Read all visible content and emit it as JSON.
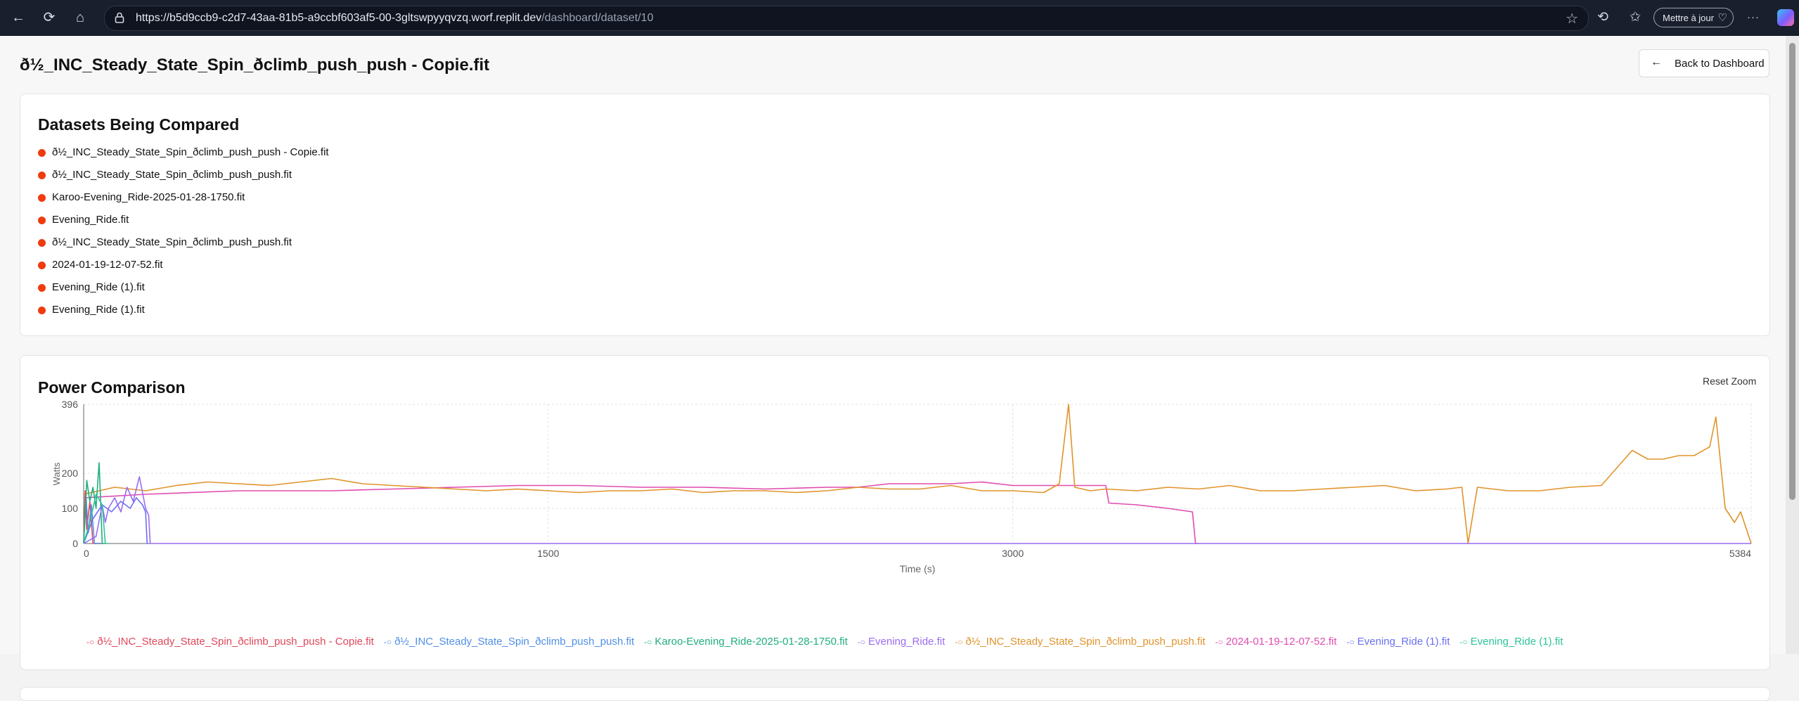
{
  "browser": {
    "url_host": "https://b5d9ccb9-c2d7-43aa-81b5-a9ccbf603af5-00-3gltswpyyqvzq.worf.replit.dev",
    "url_path": "/dashboard/dataset/10",
    "immersive_label": "Mettre à jour"
  },
  "page": {
    "title": "ð\u001f\u001f½_INC_Steady_State_Spin_ð\u001f\u001f\u001fclimb_push_push - Copie.fit",
    "back_label": "Back to Dashboard"
  },
  "datasets_card": {
    "title": "Datasets Being Compared",
    "items": [
      "ð\u001f\u001f½_INC_Steady_State_Spin_ð\u001f\u001f\u001fclimb_push_push - Copie.fit",
      "ð\u001f\u001f½_INC_Steady_State_Spin_ð\u001f\u001f\u001fclimb_push_push.fit",
      "Karoo-Evening_Ride-2025-01-28-1750.fit",
      "Evening_Ride.fit",
      "ð\u001f\u001f½_INC_Steady_State_Spin_ð\u001f\u001f\u001fclimb_push_push.fit",
      "2024-01-19-12-07-52.fit",
      "Evening_Ride (1).fit",
      "Evening_Ride (1).fit"
    ],
    "dot_color": "#ef3b0e"
  },
  "power_card": {
    "title": "Power Comparison",
    "reset_zoom": "Reset Zoom"
  },
  "chart_data": {
    "type": "line",
    "xlabel": "Time (s)",
    "ylabel": "Watts",
    "xlim": [
      0,
      5384
    ],
    "ylim": [
      0,
      396
    ],
    "xticks": [
      0,
      1500,
      3000,
      5384
    ],
    "yticks": [
      0,
      100,
      200,
      396
    ],
    "grid": true,
    "legend_position": "bottom",
    "series": [
      {
        "name": "ð\u001f\u001f½_INC_Steady_State_Spin_ð\u001f\u001f\u001fclimb_push_push - Copie.fit",
        "color": "#e0475b",
        "x": [
          0,
          5,
          10,
          20,
          30,
          40,
          50,
          60
        ],
        "y": [
          0,
          150,
          40,
          120,
          0,
          0,
          0,
          0
        ]
      },
      {
        "name": "ð\u001f\u001f½_INC_Steady_State_Spin_ð\u001f\u001f\u001fclimb_push_push.fit",
        "color": "#4f8fe8",
        "x": [
          0,
          8,
          15,
          25,
          35,
          45,
          55
        ],
        "y": [
          0,
          130,
          30,
          110,
          0,
          0,
          0
        ]
      },
      {
        "name": "Karoo-Evening_Ride-2025-01-28-1750.fit",
        "color": "#1fae7e",
        "x": [
          0,
          10,
          20,
          30,
          40,
          50,
          60,
          70
        ],
        "y": [
          0,
          180,
          120,
          160,
          100,
          230,
          0,
          0
        ]
      },
      {
        "name": "Evening_Ride.fit",
        "color": "#9a6cf2",
        "x": [
          0,
          40,
          60,
          70,
          80,
          100,
          120,
          140,
          160,
          180,
          200,
          210,
          215,
          220,
          5384
        ],
        "y": [
          0,
          20,
          110,
          60,
          100,
          130,
          90,
          160,
          120,
          190,
          100,
          80,
          0,
          0,
          0
        ]
      },
      {
        "name": "ð\u001f\u001f½_INC_Steady_State_Spin_ð\u001f\u001f\u001fclimb_push_push.fit",
        "color": "#e0932a",
        "x": [
          0,
          100,
          200,
          300,
          400,
          500,
          600,
          700,
          800,
          900,
          1000,
          1100,
          1200,
          1300,
          1400,
          1500,
          1600,
          1700,
          1800,
          1900,
          2000,
          2100,
          2200,
          2300,
          2400,
          2500,
          2600,
          2700,
          2800,
          2900,
          3000,
          3100,
          3150,
          3180,
          3200,
          3250,
          3300,
          3400,
          3500,
          3600,
          3700,
          3800,
          3900,
          4000,
          4100,
          4200,
          4300,
          4400,
          4450,
          4470,
          4500,
          4600,
          4700,
          4800,
          4900,
          5000,
          5050,
          5100,
          5150,
          5200,
          5250,
          5270,
          5300,
          5330,
          5350,
          5384
        ],
        "y": [
          140,
          160,
          150,
          165,
          175,
          170,
          165,
          175,
          185,
          170,
          165,
          160,
          155,
          150,
          155,
          150,
          145,
          150,
          150,
          155,
          145,
          150,
          150,
          145,
          150,
          160,
          155,
          155,
          165,
          150,
          150,
          145,
          170,
          396,
          160,
          150,
          155,
          150,
          160,
          155,
          165,
          150,
          150,
          155,
          160,
          165,
          150,
          155,
          160,
          0,
          160,
          150,
          150,
          160,
          165,
          265,
          240,
          240,
          250,
          250,
          275,
          360,
          100,
          60,
          90,
          0
        ]
      },
      {
        "name": "2024-01-19-12-07-52.fit",
        "color": "#e04bb0",
        "x": [
          0,
          200,
          500,
          800,
          1000,
          1200,
          1400,
          1600,
          1800,
          2000,
          2200,
          2400,
          2500,
          2600,
          2800,
          2900,
          3000,
          3100,
          3300,
          3310,
          3400,
          3500,
          3580,
          3590,
          3600
        ],
        "y": [
          130,
          140,
          150,
          150,
          155,
          160,
          165,
          165,
          160,
          160,
          155,
          160,
          160,
          170,
          170,
          175,
          165,
          165,
          165,
          115,
          110,
          100,
          90,
          0,
          0
        ]
      },
      {
        "name": "Evening_Ride (1).fit",
        "color": "#6b6ff0",
        "x": [
          0,
          30,
          60,
          90,
          120,
          150,
          170,
          190,
          200,
          205,
          210
        ],
        "y": [
          0,
          70,
          110,
          90,
          120,
          100,
          130,
          110,
          90,
          0,
          0
        ]
      },
      {
        "name": "Evening_Ride (1).fit",
        "color": "#2fc39a",
        "x": [
          0,
          20,
          40,
          60,
          70,
          80
        ],
        "y": [
          0,
          60,
          140,
          110,
          0,
          0
        ]
      }
    ]
  }
}
